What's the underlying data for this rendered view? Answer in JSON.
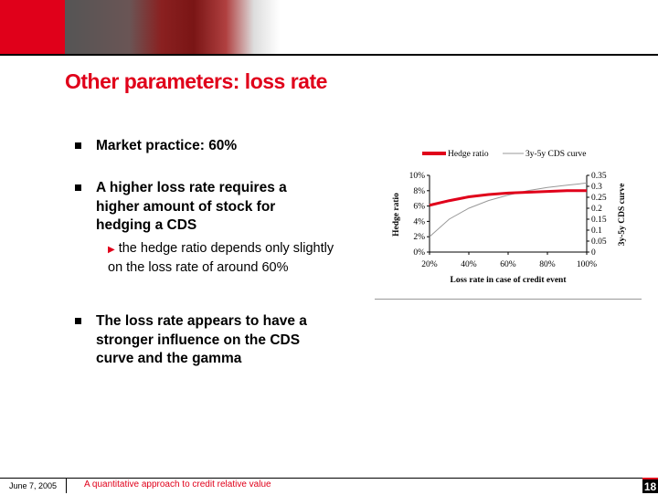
{
  "title": "Other parameters: loss rate",
  "bullets": [
    {
      "text": "Market practice: 60%"
    },
    {
      "text": "A higher loss rate requires a higher amount of stock for hedging a CDS",
      "sub": "the hedge ratio depends only slightly on the loss rate of around 60%"
    },
    {
      "text": "The loss rate appears to have a stronger influence on the CDS curve and the gamma"
    }
  ],
  "footer": {
    "date": "June 7, 2005",
    "title": "A quantitative approach to credit relative value",
    "page": "18"
  },
  "colors": {
    "accent": "#e0001a",
    "cds": "#999999"
  },
  "chart_data": {
    "type": "line",
    "xlabel": "Loss rate in case of credit event",
    "ylabel": "Hedge ratio",
    "y2label": "3y-5y CDS curve",
    "x": [
      20,
      30,
      40,
      50,
      60,
      70,
      80,
      90,
      100
    ],
    "xticks": [
      "20%",
      "40%",
      "60%",
      "80%",
      "100%"
    ],
    "yticks": [
      "0%",
      "2%",
      "4%",
      "6%",
      "8%",
      "10%"
    ],
    "y2ticks": [
      "0",
      "0.05",
      "0.1",
      "0.15",
      "0.2",
      "0.25",
      "0.3",
      "0.35"
    ],
    "ylim": [
      0,
      10
    ],
    "y2lim": [
      0,
      0.35
    ],
    "series": [
      {
        "name": "Hedge ratio",
        "axis": "left",
        "values": [
          6.1,
          6.7,
          7.2,
          7.5,
          7.7,
          7.8,
          7.9,
          8.0,
          8.0
        ]
      },
      {
        "name": "3y-5y CDS curve",
        "axis": "right",
        "values": [
          0.07,
          0.15,
          0.2,
          0.235,
          0.26,
          0.28,
          0.295,
          0.305,
          0.315
        ]
      }
    ],
    "legend": "top"
  }
}
